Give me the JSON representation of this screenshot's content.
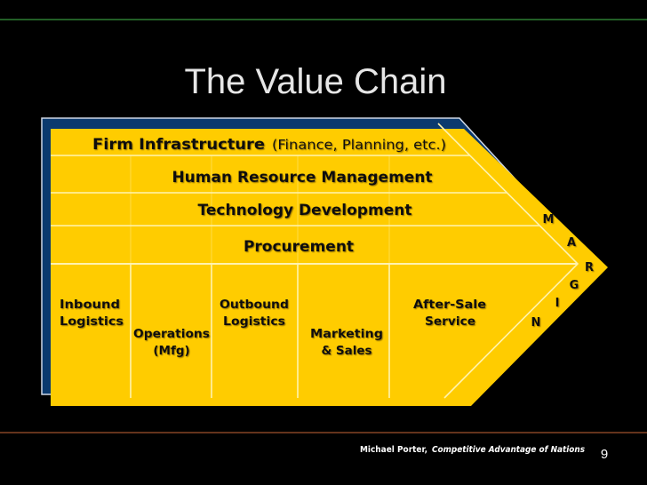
{
  "slide": {
    "title": "The Value Chain",
    "page_number": "9",
    "citation_author": "Michael Porter,",
    "citation_work": "Competitive Advantage of Nations"
  },
  "support_activities": {
    "firm_infrastructure": "Firm Infrastructure",
    "firm_infrastructure_note": "(Finance, Planning, etc.)",
    "hrm": "Human Resource Management",
    "technology": "Technology Development",
    "procurement": "Procurement"
  },
  "primary_activities": {
    "inbound_1": "Inbound",
    "inbound_2": "Logistics",
    "operations_1": "Operations",
    "operations_2": "(Mfg)",
    "outbound_1": "Outbound",
    "outbound_2": "Logistics",
    "marketing_1": "Marketing",
    "marketing_2": "& Sales",
    "service_1": "After-Sale",
    "service_2": "Service"
  },
  "margin_letters": [
    "M",
    "A",
    "R",
    "G",
    "I",
    "N"
  ],
  "colors": {
    "background": "#000000",
    "shape": "#FFCC00",
    "back_shape": "#0B3A6E",
    "top_rule": "#2E7D32",
    "bottom_rule": "#A0522D"
  }
}
